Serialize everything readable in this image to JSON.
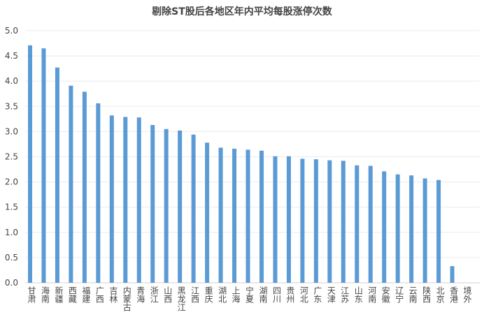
{
  "chart_data": {
    "type": "bar",
    "title": "剔除ST股后各地区年内平均每股涨停次数",
    "categories": [
      "甘肃",
      "海南",
      "新疆",
      "西藏",
      "福建",
      "广西",
      "吉林",
      "内蒙古",
      "青海",
      "浙江",
      "山西",
      "黑龙江",
      "江西",
      "重庆",
      "湖北",
      "上海",
      "宁夏",
      "湖南",
      "四川",
      "贵州",
      "河北",
      "广东",
      "天津",
      "江苏",
      "山东",
      "河南",
      "安徽",
      "辽宁",
      "云南",
      "陕西",
      "北京",
      "香港",
      "境外"
    ],
    "values": [
      4.71,
      4.65,
      4.27,
      3.91,
      3.79,
      3.56,
      3.32,
      3.29,
      3.28,
      3.13,
      3.05,
      3.02,
      2.94,
      2.78,
      2.68,
      2.66,
      2.64,
      2.62,
      2.51,
      2.51,
      2.46,
      2.45,
      2.43,
      2.42,
      2.33,
      2.32,
      2.21,
      2.15,
      2.13,
      2.07,
      2.04,
      0.33,
      0
    ],
    "ylim": [
      0,
      5.0
    ],
    "yticks": [
      "0.0",
      "0.5",
      "1.0",
      "1.5",
      "2.0",
      "2.5",
      "3.0",
      "3.5",
      "4.0",
      "4.5",
      "5.0"
    ],
    "grid": true,
    "bar_color": "#5B9BD5"
  }
}
